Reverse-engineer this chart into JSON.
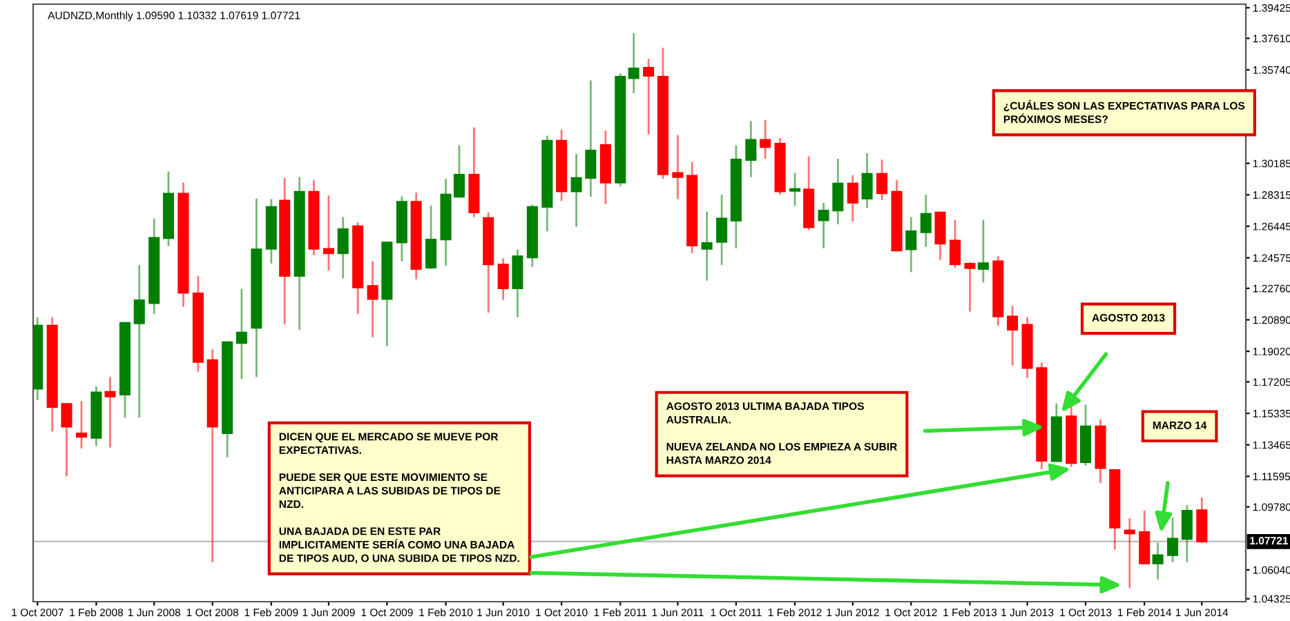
{
  "chart_data": {
    "type": "candlestick",
    "title": "AUDNZD,Monthly 1.09590 1.10332 1.07619 1.07721",
    "x": [
      "2007-10",
      "2007-11",
      "2007-12",
      "2008-01",
      "2008-02",
      "2008-03",
      "2008-04",
      "2008-05",
      "2008-06",
      "2008-07",
      "2008-08",
      "2008-09",
      "2008-10",
      "2008-11",
      "2008-12",
      "2009-01",
      "2009-02",
      "2009-03",
      "2009-04",
      "2009-05",
      "2009-06",
      "2009-07",
      "2009-08",
      "2009-09",
      "2009-10",
      "2009-11",
      "2009-12",
      "2010-01",
      "2010-02",
      "2010-03",
      "2010-04",
      "2010-05",
      "2010-06",
      "2010-07",
      "2010-08",
      "2010-09",
      "2010-10",
      "2010-11",
      "2010-12",
      "2011-01",
      "2011-02",
      "2011-03",
      "2011-04",
      "2011-05",
      "2011-06",
      "2011-07",
      "2011-08",
      "2011-09",
      "2011-10",
      "2011-11",
      "2011-12",
      "2012-01",
      "2012-02",
      "2012-03",
      "2012-04",
      "2012-05",
      "2012-06",
      "2012-07",
      "2012-08",
      "2012-09",
      "2012-10",
      "2012-11",
      "2012-12",
      "2013-01",
      "2013-02",
      "2013-03",
      "2013-04",
      "2013-05",
      "2013-06",
      "2013-07",
      "2013-08",
      "2013-09",
      "2013-10",
      "2013-11",
      "2013-12",
      "2014-01",
      "2014-02",
      "2014-03",
      "2014-04",
      "2014-05",
      "2014-06"
    ],
    "ohlc": [
      [
        1.168,
        1.2104,
        1.1612,
        1.2055
      ],
      [
        1.2055,
        1.2104,
        1.1426,
        1.1571
      ],
      [
        1.159,
        1.159,
        1.1159,
        1.1454
      ],
      [
        1.1415,
        1.1607,
        1.1325,
        1.1394
      ],
      [
        1.1388,
        1.1694,
        1.1339,
        1.1658
      ],
      [
        1.1661,
        1.1749,
        1.1331,
        1.1634
      ],
      [
        1.1645,
        1.2076,
        1.1508,
        1.2071
      ],
      [
        1.2068,
        1.2415,
        1.1508,
        1.2205
      ],
      [
        1.2188,
        1.2691,
        1.2123,
        1.2576
      ],
      [
        1.2574,
        1.297,
        1.2527,
        1.2839
      ],
      [
        1.2839,
        1.2904,
        1.2167,
        1.2249
      ],
      [
        1.2246,
        1.235,
        1.1781,
        1.1839
      ],
      [
        1.185,
        1.1913,
        1.065,
        1.1454
      ],
      [
        1.1415,
        1.1962,
        1.1273,
        1.1956
      ],
      [
        1.1951,
        1.2273,
        1.1738,
        1.2014
      ],
      [
        1.2041,
        1.2809,
        1.1749,
        1.2508
      ],
      [
        1.2511,
        1.2806,
        1.2423,
        1.276
      ],
      [
        1.2798,
        1.2932,
        1.2063,
        1.235
      ],
      [
        1.235,
        1.2937,
        1.203,
        1.285
      ],
      [
        1.285,
        1.2918,
        1.2473,
        1.2511
      ],
      [
        1.2511,
        1.2828,
        1.2382,
        1.2484
      ],
      [
        1.2484,
        1.2699,
        1.2336,
        1.2628
      ],
      [
        1.2645,
        1.2667,
        1.2123,
        1.2281
      ],
      [
        1.229,
        1.2437,
        1.1986,
        1.2213
      ],
      [
        1.2213,
        1.2555,
        1.1934,
        1.2549
      ],
      [
        1.2549,
        1.2822,
        1.2437,
        1.279
      ],
      [
        1.279,
        1.2844,
        1.2331,
        1.2391
      ],
      [
        1.2399,
        1.2768,
        1.2391,
        1.2566
      ],
      [
        1.2566,
        1.2926,
        1.241,
        1.2833
      ],
      [
        1.282,
        1.3126,
        1.2814,
        1.2951
      ],
      [
        1.2951,
        1.3232,
        1.2699,
        1.2727
      ],
      [
        1.2694,
        1.2727,
        1.2131,
        1.2418
      ],
      [
        1.2418,
        1.2454,
        1.2208,
        1.2276
      ],
      [
        1.2276,
        1.2508,
        1.2104,
        1.2467
      ],
      [
        1.2459,
        1.2773,
        1.2404,
        1.276
      ],
      [
        1.276,
        1.3183,
        1.2615,
        1.3153
      ],
      [
        1.3153,
        1.3219,
        1.2795,
        1.2852
      ],
      [
        1.2852,
        1.3074,
        1.2642,
        1.2932
      ],
      [
        1.2932,
        1.3511,
        1.282,
        1.3095
      ],
      [
        1.3128,
        1.3213,
        1.2776,
        1.2904
      ],
      [
        1.2904,
        1.3552,
        1.2882,
        1.3533
      ],
      [
        1.3524,
        1.3792,
        1.3434,
        1.3582
      ],
      [
        1.3587,
        1.3639,
        1.3191,
        1.3538
      ],
      [
        1.3533,
        1.3705,
        1.2926,
        1.2953
      ],
      [
        1.2962,
        1.3186,
        1.2806,
        1.2937
      ],
      [
        1.2945,
        1.3027,
        1.2486,
        1.253
      ],
      [
        1.2511,
        1.2732,
        1.2322,
        1.2546
      ],
      [
        1.2552,
        1.2833,
        1.2415,
        1.2691
      ],
      [
        1.2678,
        1.3126,
        1.2514,
        1.3041
      ],
      [
        1.3038,
        1.327,
        1.2937,
        1.3158
      ],
      [
        1.3158,
        1.3276,
        1.3046,
        1.3115
      ],
      [
        1.3136,
        1.3169,
        1.2833,
        1.2852
      ],
      [
        1.2855,
        1.2962,
        1.2765,
        1.2866
      ],
      [
        1.2863,
        1.306,
        1.2623,
        1.2639
      ],
      [
        1.268,
        1.2784,
        1.2514,
        1.2738
      ],
      [
        1.2738,
        1.3046,
        1.2656,
        1.2899
      ],
      [
        1.2899,
        1.2948,
        1.2672,
        1.2784
      ],
      [
        1.2809,
        1.3079,
        1.2754,
        1.2956
      ],
      [
        1.2956,
        1.3041,
        1.28,
        1.2841
      ],
      [
        1.285,
        1.2918,
        1.2495,
        1.25
      ],
      [
        1.2508,
        1.2699,
        1.2372,
        1.2615
      ],
      [
        1.2609,
        1.2833,
        1.2522,
        1.2719
      ],
      [
        1.2727,
        1.2732,
        1.2445,
        1.2541
      ],
      [
        1.256,
        1.2683,
        1.2399,
        1.2418
      ],
      [
        1.2423,
        1.2432,
        1.2139,
        1.2396
      ],
      [
        1.2391,
        1.2683,
        1.2311,
        1.2426
      ],
      [
        1.2437,
        1.2467,
        1.2055,
        1.2109
      ],
      [
        1.2109,
        1.2172,
        1.1817,
        1.203
      ],
      [
        1.206,
        1.2104,
        1.1743,
        1.1803
      ],
      [
        1.1803,
        1.1836,
        1.1202,
        1.1251
      ],
      [
        1.1249,
        1.1593,
        1.1249,
        1.1511
      ],
      [
        1.1516,
        1.1658,
        1.1216,
        1.1238
      ],
      [
        1.1243,
        1.1585,
        1.1224,
        1.1456
      ],
      [
        1.1456,
        1.1497,
        1.112,
        1.1208
      ],
      [
        1.1197,
        1.1197,
        1.0724,
        1.0855
      ],
      [
        1.0839,
        1.091,
        1.0497,
        1.082
      ],
      [
        1.0828,
        1.0956,
        1.0642,
        1.0642
      ],
      [
        1.0642,
        1.0765,
        1.0547,
        1.0691
      ],
      [
        1.0691,
        1.0915,
        1.065,
        1.079
      ],
      [
        1.0787,
        1.0989,
        1.065,
        1.0956
      ],
      [
        1.0959,
        1.10332,
        1.07619,
        1.07721
      ]
    ],
    "colors": [
      "#008000",
      "#ff0000",
      "#ff0000",
      "#ff0000",
      "#008000",
      "#ff0000",
      "#008000",
      "#008000",
      "#008000",
      "#008000",
      "#ff0000",
      "#ff0000",
      "#ff0000",
      "#008000",
      "#008000",
      "#008000",
      "#008000",
      "#ff0000",
      "#008000",
      "#ff0000",
      "#ff0000",
      "#008000",
      "#ff0000",
      "#ff0000",
      "#008000",
      "#008000",
      "#ff0000",
      "#008000",
      "#008000",
      "#008000",
      "#ff0000",
      "#ff0000",
      "#ff0000",
      "#008000",
      "#008000",
      "#008000",
      "#ff0000",
      "#008000",
      "#008000",
      "#ff0000",
      "#008000",
      "#008000",
      "#ff0000",
      "#ff0000",
      "#ff0000",
      "#ff0000",
      "#008000",
      "#008000",
      "#008000",
      "#008000",
      "#ff0000",
      "#ff0000",
      "#008000",
      "#ff0000",
      "#008000",
      "#008000",
      "#ff0000",
      "#008000",
      "#ff0000",
      "#ff0000",
      "#008000",
      "#008000",
      "#ff0000",
      "#ff0000",
      "#ff0000",
      "#008000",
      "#ff0000",
      "#ff0000",
      "#ff0000",
      "#ff0000",
      "#008000",
      "#ff0000",
      "#008000",
      "#ff0000",
      "#ff0000",
      "#ff0000",
      "#ff0000",
      "#008000",
      "#008000",
      "#008000",
      "#ff0000"
    ],
    "xlim": [
      "2007-09-22",
      "2014-09-01"
    ],
    "xticks": [
      {
        "value": "2007-10",
        "label": "1 Oct 2007"
      },
      {
        "value": "2008-02",
        "label": "1 Feb 2008"
      },
      {
        "value": "2008-06",
        "label": "1 Jun 2008"
      },
      {
        "value": "2008-10",
        "label": "1 Oct 2008"
      },
      {
        "value": "2009-02",
        "label": "1 Feb 2009"
      },
      {
        "value": "2009-06",
        "label": "1 Jun 2009"
      },
      {
        "value": "2009-10",
        "label": "1 Oct 2009"
      },
      {
        "value": "2010-02",
        "label": "1 Feb 2010"
      },
      {
        "value": "2010-06",
        "label": "1 Jun 2010"
      },
      {
        "value": "2010-10",
        "label": "1 Oct 2010"
      },
      {
        "value": "2011-02",
        "label": "1 Feb 2011"
      },
      {
        "value": "2011-06",
        "label": "1 Jun 2011"
      },
      {
        "value": "2011-10",
        "label": "1 Oct 2011"
      },
      {
        "value": "2012-02",
        "label": "1 Feb 2012"
      },
      {
        "value": "2012-06",
        "label": "1 Jun 2012"
      },
      {
        "value": "2012-10",
        "label": "1 Oct 2012"
      },
      {
        "value": "2013-02",
        "label": "1 Feb 2013"
      },
      {
        "value": "2013-06",
        "label": "1 Jun 2013"
      },
      {
        "value": "2013-10",
        "label": "1 Oct 2013"
      },
      {
        "value": "2014-02",
        "label": "1 Feb 2014"
      },
      {
        "value": "2014-06",
        "label": "1 Jun 2014"
      }
    ],
    "ylim": [
      1.0415,
      1.3964
    ],
    "yticks": [
      1.39425,
      {
        "value": 1.3761,
        "label": "1.37610"
      },
      {
        "value": 1.3574,
        "label": "1.35740"
      },
      1.30185,
      1.28315,
      1.26445,
      1.24575,
      {
        "value": 1.2276,
        "label": "1.22760"
      },
      {
        "value": 1.2089,
        "label": "1.20890"
      },
      {
        "value": 1.1902,
        "label": "1.19020"
      },
      1.17205,
      1.15335,
      1.13465,
      1.11595,
      {
        "value": 1.0978,
        "label": "1.09780"
      },
      {
        "value": 1.0604,
        "label": "1.06040"
      },
      1.04325
    ],
    "ref_lines": [
      {
        "axis": "y",
        "value": 1.07721,
        "label": "1.07721",
        "color": "#c0c0c0"
      }
    ],
    "annotations": [
      "DICEN QUE EL MERCADO SE MUEVE POR\nEXPECTATIVAS.\n\nPUEDE SER QUE ESTE MOVIMIENTO SE\nANTICIPARA A LAS SUBIDAS DE TIPOS DE\nNZD.\n\nUNA BAJADA DE EN ESTE PAR\nIMPLICITAMENTE SERÍA COMO UNA BAJADA\nDE TIPOS AUD, O UNA SUBIDA DE TIPOS NZD.",
      "AGOSTO 2013 ULTIMA BAJADA TIPOS\nAUSTRALIA.\n\nNUEVA ZELANDA NO LOS EMPIEZA A SUBIR\nHASTA MARZO 2014",
      "AGOSTO 2013",
      "MARZO 14",
      "¿CUÁLES SON LAS EXPECTATIVAS PARA LOS\nPRÓXIMOS MESES?"
    ]
  }
}
